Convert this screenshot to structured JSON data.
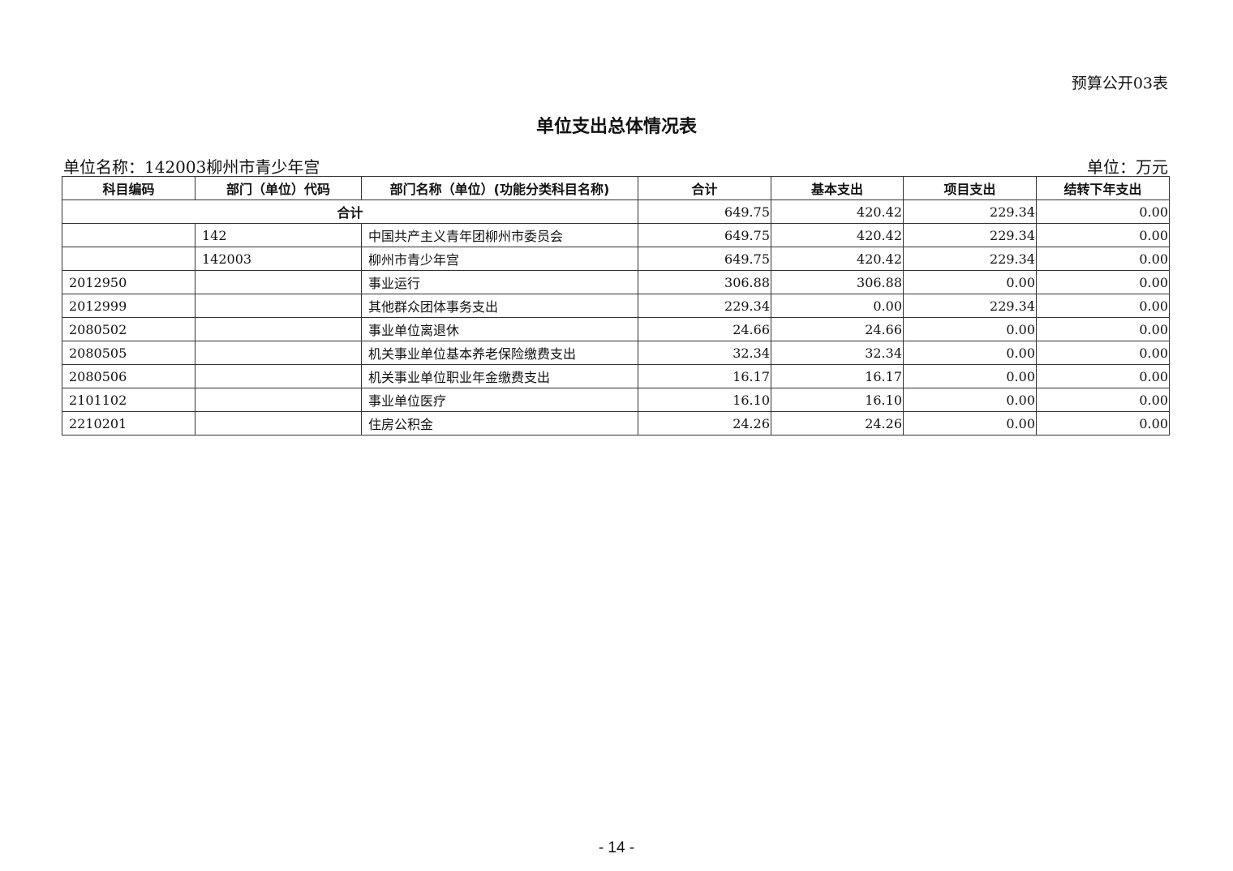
{
  "form_no": "预算公开03表",
  "title": "单位支出总体情况表",
  "unit_name": "单位名称：142003柳州市青少年宫",
  "unit": "单位：万元",
  "table": {
    "headers": [
      "科目编码",
      "部门（单位）代码",
      "部门名称（单位）(功能分类科目名称)",
      "合计",
      "基本支出",
      "项目支出",
      "结转下年支出"
    ],
    "total_row": {
      "label": "合计",
      "values": [
        "649.75",
        "420.42",
        "229.34",
        "0.00"
      ]
    },
    "rows": [
      [
        "",
        "142",
        "中国共产主义青年团柳州市委员会",
        "649.75",
        "420.42",
        "229.34",
        "0.00"
      ],
      [
        "",
        "142003",
        "柳州市青少年宫",
        "649.75",
        "420.42",
        "229.34",
        "0.00"
      ],
      [
        "2012950",
        "",
        "事业运行",
        "306.88",
        "306.88",
        "0.00",
        "0.00"
      ],
      [
        "2012999",
        "",
        "其他群众团体事务支出",
        "229.34",
        "0.00",
        "229.34",
        "0.00"
      ],
      [
        "2080502",
        "",
        "事业单位离退休",
        "24.66",
        "24.66",
        "0.00",
        "0.00"
      ],
      [
        "2080505",
        "",
        "机关事业单位基本养老保险缴费支出",
        "32.34",
        "32.34",
        "0.00",
        "0.00"
      ],
      [
        "2080506",
        "",
        "机关事业单位职业年金缴费支出",
        "16.17",
        "16.17",
        "0.00",
        "0.00"
      ],
      [
        "2101102",
        "",
        "事业单位医疗",
        "16.10",
        "16.10",
        "0.00",
        "0.00"
      ],
      [
        "2210201",
        "",
        "住房公积金",
        "24.26",
        "24.26",
        "0.00",
        "0.00"
      ]
    ]
  },
  "page_number": "- 14 -"
}
